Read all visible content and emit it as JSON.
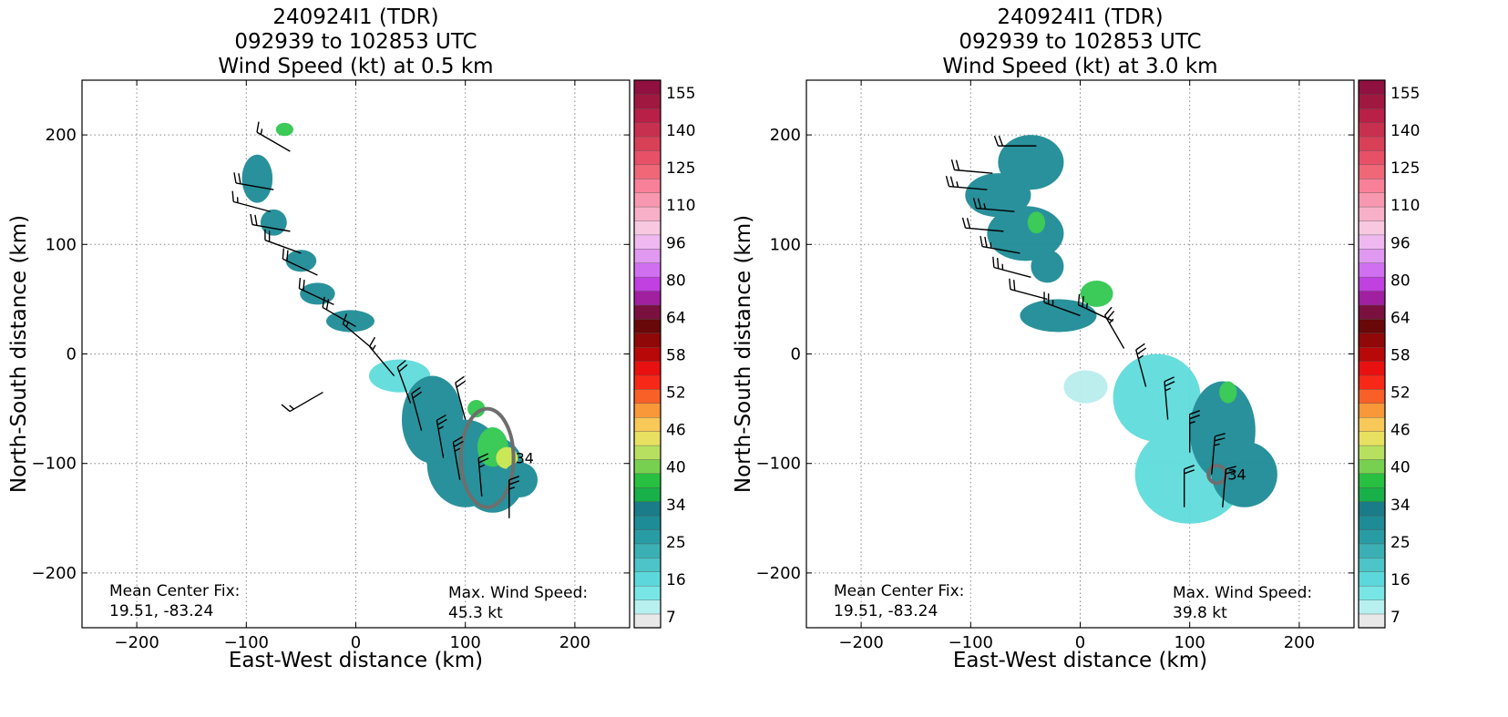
{
  "colors": {
    "field_low": "#b9eeee",
    "field_mid": "#5fdcdc",
    "field_teal": "#1e8c96",
    "field_green": "#32c850",
    "field_lime": "#c8e650",
    "wind_barb": "#000000",
    "contour": "#6e6e6e",
    "grid": "#888888"
  },
  "colorbar": {
    "tick_labels": [
      "155",
      "140",
      "125",
      "110",
      "96",
      "80",
      "64",
      "58",
      "52",
      "46",
      "40",
      "34",
      "25",
      "16",
      "7"
    ],
    "colors_bottom_to_top": [
      "#e8e8e8",
      "#b8f0f0",
      "#78e6e6",
      "#5cd8dc",
      "#4cc4c8",
      "#3ab0b4",
      "#289ca4",
      "#1e8c96",
      "#1a7c88",
      "#18b048",
      "#28c040",
      "#78d050",
      "#b8e060",
      "#e8e060",
      "#f8c858",
      "#f89838",
      "#f86028",
      "#f82818",
      "#e81010",
      "#b80808",
      "#900808",
      "#680808",
      "#7a1040",
      "#a020a0",
      "#c040e0",
      "#d070f0",
      "#e098f0",
      "#f0b8f0",
      "#f8c8e0",
      "#f8b0c8",
      "#f898b0",
      "#f88098",
      "#f06878",
      "#e85068",
      "#d84058",
      "#c83050",
      "#b82048",
      "#a01840",
      "#901040"
    ]
  },
  "chart_data": [
    {
      "type": "heatmap",
      "title": [
        "240924I1 (TDR)",
        "092939 to 102853 UTC",
        "Wind Speed (kt) at 0.5 km"
      ],
      "xlabel": "East-West distance (km)",
      "ylabel": "North-South distance (km)",
      "xlim": [
        -250,
        250
      ],
      "ylim": [
        -250,
        250
      ],
      "xticks": [
        -200,
        -100,
        0,
        100,
        200
      ],
      "yticks": [
        -200,
        -100,
        0,
        100,
        200
      ],
      "xtick_labels": [
        "−200",
        "−100",
        "0",
        "100",
        "200"
      ],
      "ytick_labels": [
        "−200",
        "−100",
        "0",
        "100",
        "200"
      ],
      "grid": true,
      "colorbar_range_kt": [
        7,
        160
      ],
      "annotations": {
        "center_fix_label": "Mean Center Fix:",
        "center_fix_value": "19.51, -83.24",
        "max_wind_label": "Max. Wind Speed:",
        "max_wind_value": "45.3 kt",
        "contour_label": "34"
      },
      "wind_field_regions": [
        {
          "x": -65,
          "y": 205,
          "rx": 8,
          "ry": 6,
          "wind_kt": 34
        },
        {
          "x": -90,
          "y": 160,
          "rx": 14,
          "ry": 22,
          "wind_kt": 22
        },
        {
          "x": -75,
          "y": 120,
          "rx": 12,
          "ry": 12,
          "wind_kt": 22
        },
        {
          "x": -50,
          "y": 85,
          "rx": 14,
          "ry": 10,
          "wind_kt": 22
        },
        {
          "x": -35,
          "y": 55,
          "rx": 16,
          "ry": 10,
          "wind_kt": 22
        },
        {
          "x": -5,
          "y": 30,
          "rx": 22,
          "ry": 10,
          "wind_kt": 22
        },
        {
          "x": 40,
          "y": -20,
          "rx": 28,
          "ry": 15,
          "wind_kt": 16
        },
        {
          "x": 70,
          "y": -60,
          "rx": 28,
          "ry": 40,
          "wind_kt": 23
        },
        {
          "x": 100,
          "y": -100,
          "rx": 35,
          "ry": 40,
          "wind_kt": 24
        },
        {
          "x": 125,
          "y": -110,
          "rx": 30,
          "ry": 35,
          "wind_kt": 24
        },
        {
          "x": 110,
          "y": -50,
          "rx": 8,
          "ry": 8,
          "wind_kt": 34
        },
        {
          "x": 125,
          "y": -85,
          "rx": 14,
          "ry": 18,
          "wind_kt": 38
        },
        {
          "x": 138,
          "y": -95,
          "rx": 10,
          "ry": 10,
          "wind_kt": 45
        },
        {
          "x": 150,
          "y": -115,
          "rx": 16,
          "ry": 16,
          "wind_kt": 26
        }
      ],
      "wind_barbs": [
        {
          "x": -60,
          "y": 185,
          "dir": 300,
          "kt": 15
        },
        {
          "x": -75,
          "y": 150,
          "dir": 280,
          "kt": 20
        },
        {
          "x": -78,
          "y": 130,
          "dir": 285,
          "kt": 15
        },
        {
          "x": -60,
          "y": 112,
          "dir": 280,
          "kt": 20
        },
        {
          "x": -50,
          "y": 92,
          "dir": 290,
          "kt": 20
        },
        {
          "x": -35,
          "y": 72,
          "dir": 295,
          "kt": 20
        },
        {
          "x": -20,
          "y": 45,
          "dir": 295,
          "kt": 20
        },
        {
          "x": 0,
          "y": 25,
          "dir": 300,
          "kt": 20
        },
        {
          "x": 15,
          "y": 5,
          "dir": 310,
          "kt": 15
        },
        {
          "x": 35,
          "y": -20,
          "dir": 320,
          "kt": 15
        },
        {
          "x": 50,
          "y": -45,
          "dir": 340,
          "kt": 20
        },
        {
          "x": 60,
          "y": -70,
          "dir": 345,
          "kt": 20
        },
        {
          "x": 80,
          "y": -95,
          "dir": 350,
          "kt": 25
        },
        {
          "x": 95,
          "y": -115,
          "dir": 350,
          "kt": 25
        },
        {
          "x": 115,
          "y": -130,
          "dir": 355,
          "kt": 25
        },
        {
          "x": 140,
          "y": -150,
          "dir": 0,
          "kt": 25
        },
        {
          "x": -30,
          "y": -35,
          "dir": 240,
          "kt": 15
        },
        {
          "x": 100,
          "y": -60,
          "dir": 345,
          "kt": 20
        }
      ],
      "contours": [
        {
          "label": "34",
          "x": 120,
          "y": -95,
          "rx": 24,
          "ry": 45
        }
      ]
    },
    {
      "type": "heatmap",
      "title": [
        "240924I1 (TDR)",
        "092939 to 102853 UTC",
        "Wind Speed (kt) at 3.0 km"
      ],
      "xlabel": "East-West distance (km)",
      "ylabel": "North-South distance (km)",
      "xlim": [
        -250,
        250
      ],
      "ylim": [
        -250,
        250
      ],
      "xticks": [
        -200,
        -100,
        0,
        100,
        200
      ],
      "yticks": [
        -200,
        -100,
        0,
        100,
        200
      ],
      "xtick_labels": [
        "−200",
        "−100",
        "0",
        "100",
        "200"
      ],
      "ytick_labels": [
        "−200",
        "−100",
        "0",
        "100",
        "200"
      ],
      "grid": true,
      "colorbar_range_kt": [
        7,
        160
      ],
      "annotations": {
        "center_fix_label": "Mean Center Fix:",
        "center_fix_value": "19.51, -83.24",
        "max_wind_label": "Max. Wind Speed:",
        "max_wind_value": "39.8 kt",
        "contour_label": "34"
      },
      "wind_field_regions": [
        {
          "x": -45,
          "y": 175,
          "rx": 30,
          "ry": 25,
          "wind_kt": 24
        },
        {
          "x": -75,
          "y": 145,
          "rx": 30,
          "ry": 20,
          "wind_kt": 24
        },
        {
          "x": -50,
          "y": 110,
          "rx": 35,
          "ry": 25,
          "wind_kt": 24
        },
        {
          "x": -30,
          "y": 80,
          "rx": 15,
          "ry": 15,
          "wind_kt": 24
        },
        {
          "x": -40,
          "y": 120,
          "rx": 8,
          "ry": 10,
          "wind_kt": 34
        },
        {
          "x": 15,
          "y": 55,
          "rx": 15,
          "ry": 12,
          "wind_kt": 36
        },
        {
          "x": -20,
          "y": 35,
          "rx": 35,
          "ry": 15,
          "wind_kt": 24
        },
        {
          "x": 5,
          "y": -30,
          "rx": 20,
          "ry": 15,
          "wind_kt": 12
        },
        {
          "x": 70,
          "y": -40,
          "rx": 40,
          "ry": 40,
          "wind_kt": 18
        },
        {
          "x": 100,
          "y": -110,
          "rx": 50,
          "ry": 45,
          "wind_kt": 18
        },
        {
          "x": 130,
          "y": -70,
          "rx": 30,
          "ry": 45,
          "wind_kt": 24
        },
        {
          "x": 150,
          "y": -110,
          "rx": 30,
          "ry": 30,
          "wind_kt": 22
        },
        {
          "x": 135,
          "y": -35,
          "rx": 8,
          "ry": 10,
          "wind_kt": 34
        }
      ],
      "wind_barbs": [
        {
          "x": -40,
          "y": 190,
          "dir": 270,
          "kt": 20
        },
        {
          "x": -80,
          "y": 165,
          "dir": 275,
          "kt": 20
        },
        {
          "x": -85,
          "y": 150,
          "dir": 275,
          "kt": 25
        },
        {
          "x": -60,
          "y": 130,
          "dir": 275,
          "kt": 25
        },
        {
          "x": -70,
          "y": 112,
          "dir": 275,
          "kt": 20
        },
        {
          "x": -55,
          "y": 92,
          "dir": 280,
          "kt": 25
        },
        {
          "x": -45,
          "y": 70,
          "dir": 285,
          "kt": 25
        },
        {
          "x": -30,
          "y": 50,
          "dir": 285,
          "kt": 20
        },
        {
          "x": 0,
          "y": 35,
          "dir": 290,
          "kt": 25
        },
        {
          "x": 30,
          "y": 30,
          "dir": 295,
          "kt": 25
        },
        {
          "x": 40,
          "y": 5,
          "dir": 330,
          "kt": 25
        },
        {
          "x": 60,
          "y": -30,
          "dir": 345,
          "kt": 25
        },
        {
          "x": 80,
          "y": -60,
          "dir": 355,
          "kt": 25
        },
        {
          "x": 100,
          "y": -90,
          "dir": 0,
          "kt": 25
        },
        {
          "x": 120,
          "y": -110,
          "dir": 5,
          "kt": 25
        },
        {
          "x": 95,
          "y": -140,
          "dir": 0,
          "kt": 20
        },
        {
          "x": 130,
          "y": -140,
          "dir": 5,
          "kt": 20
        }
      ],
      "contours": [
        {
          "label": "34",
          "x": 125,
          "y": -110,
          "rx": 8,
          "ry": 8
        }
      ]
    }
  ]
}
